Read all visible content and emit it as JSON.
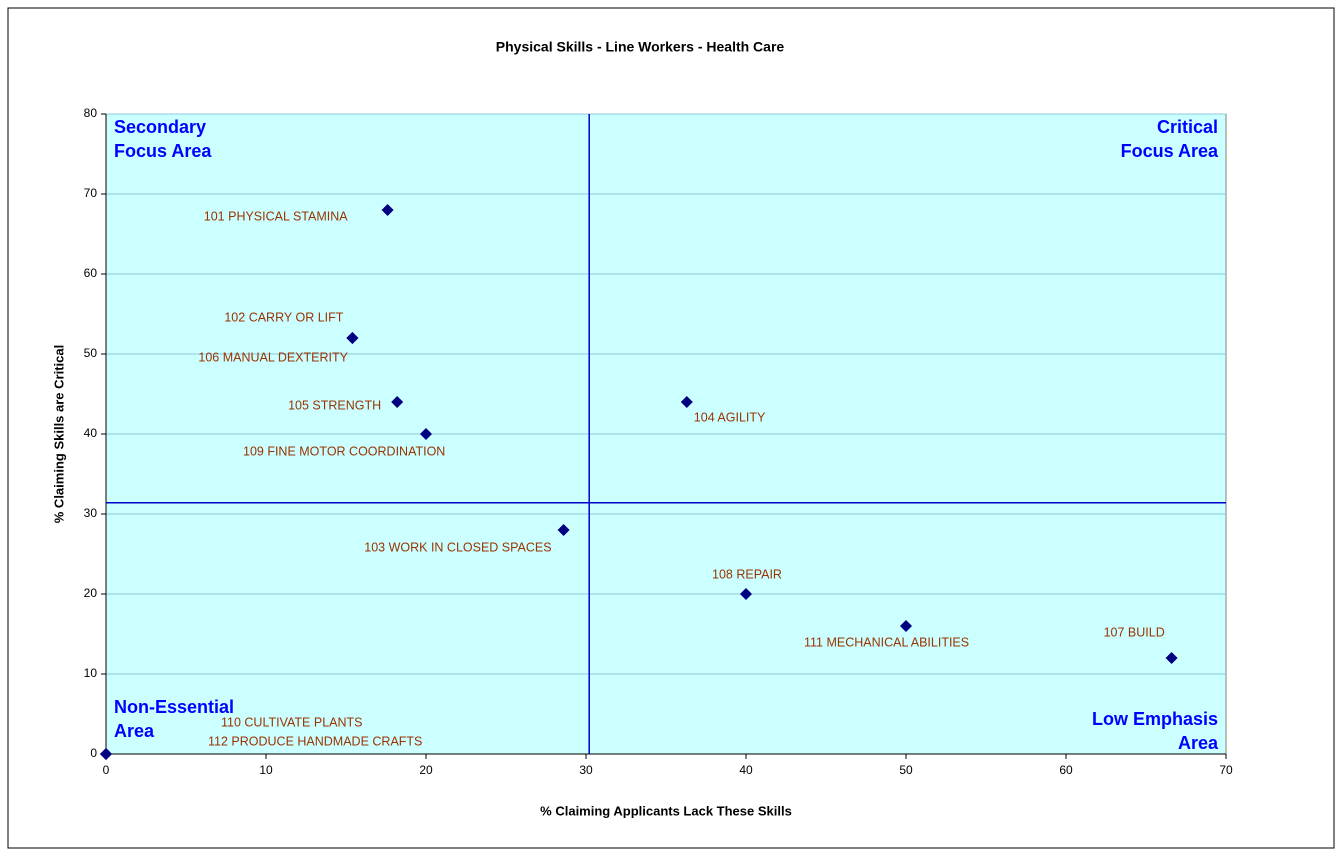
{
  "chart_data": {
    "type": "scatter",
    "title": "Physical Skills - Line Workers -  Health Care",
    "x_label": "% Claiming Applicants Lack These Skills",
    "y_label": "% Claiming Skills are Critical",
    "xlim": [
      0,
      70
    ],
    "xticks": [
      0,
      10,
      20,
      30,
      40,
      50,
      60,
      70
    ],
    "ylim": [
      0,
      80
    ],
    "yticks": [
      0,
      10,
      20,
      30,
      40,
      50,
      60,
      70,
      80
    ],
    "grid": true,
    "color": "#000080",
    "plot_background": "#ccffff",
    "labels": [
      "101 PHYSICAL STAMINA",
      "102 CARRY OR LIFT",
      "106 MANUAL DEXTERITY",
      "105 STRENGTH",
      "109 FINE MOTOR COORDINATION",
      "103 WORK IN CLOSED SPACES",
      "104 AGILITY",
      "108 REPAIR",
      "111 MECHANICAL ABILITIES",
      "107 BUILD",
      "110 CULTIVATE PLANTS",
      "112 PRODUCE HANDMADE CRAFTS"
    ],
    "x": [
      17.6,
      15.4,
      15.4,
      18.2,
      20,
      28.6,
      36.3,
      40,
      50,
      66.6,
      0,
      0
    ],
    "y": [
      68,
      52,
      52,
      44,
      40,
      28,
      44,
      20,
      16,
      12,
      0,
      0
    ],
    "x_threshold": 30.2,
    "y_threshold": 31.4,
    "quadrants": {
      "top_left": [
        "Secondary",
        "Focus Area"
      ],
      "top_right": [
        "Critical",
        "Focus Area"
      ],
      "bottom_left": [
        "Non-Essential",
        "Area"
      ],
      "bottom_right": [
        "Low Emphasis",
        "Area"
      ]
    }
  }
}
